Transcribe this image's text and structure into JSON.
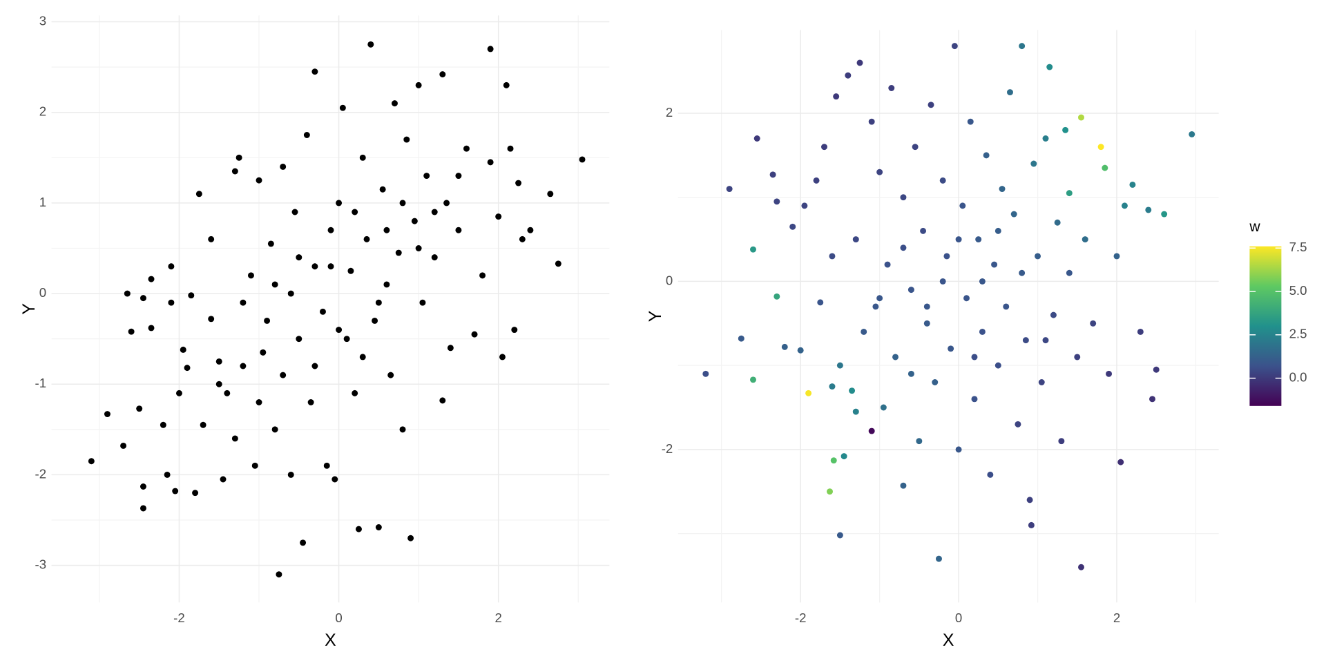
{
  "chart_data": [
    {
      "type": "scatter",
      "xlabel": "X",
      "ylabel": "Y",
      "color": "#000000",
      "grid": true,
      "xlim": [
        -3.6,
        3.39
      ],
      "ylim": [
        -3.41,
        3.07
      ],
      "xticks": [
        -2,
        0,
        2
      ],
      "yticks": [
        -3,
        -2,
        -1,
        0,
        1,
        2,
        3
      ],
      "xminor": [
        -3,
        -1,
        1,
        3
      ],
      "yminor": [
        -2.5,
        -1.5,
        -0.5,
        0.5,
        1.5,
        2.5
      ],
      "x": [
        -3.1,
        -2.9,
        -2.7,
        -2.65,
        -2.6,
        -2.5,
        -2.45,
        -2.45,
        -2.45,
        -2.35,
        -2.35,
        -2.2,
        -2.15,
        -2.1,
        -2.1,
        -2.05,
        -2.0,
        -1.95,
        -1.9,
        -1.85,
        -1.8,
        -1.75,
        -1.7,
        -1.6,
        -1.6,
        -1.5,
        -1.45,
        -1.4,
        -1.3,
        -1.3,
        -1.25,
        -1.2,
        -1.1,
        -1.05,
        -1.0,
        -0.95,
        -0.9,
        -0.85,
        -0.8,
        -0.75,
        -0.7,
        -0.7,
        -0.6,
        -0.55,
        -0.5,
        -0.45,
        -0.4,
        -0.35,
        -0.3,
        -0.3,
        -0.2,
        -0.15,
        -0.1,
        -0.05,
        0,
        0.05,
        0.1,
        0.15,
        0.2,
        0.25,
        0.3,
        0.35,
        0.4,
        0.45,
        0.5,
        0.55,
        0.6,
        0.65,
        0.7,
        0.75,
        0.8,
        0.85,
        0.9,
        0.95,
        1.0,
        1.05,
        1.1,
        1.2,
        1.3,
        1.3,
        1.35,
        1.4,
        1.5,
        1.6,
        1.7,
        1.8,
        1.9,
        1.9,
        2.0,
        2.05,
        2.1,
        2.15,
        2.2,
        2.25,
        2.3,
        2.4,
        2.65,
        2.75,
        3.05,
        -0.6,
        -0.3,
        0.2,
        -0.8,
        0.5,
        1.0,
        -1.2,
        0.0,
        0.3,
        -0.5,
        0.8,
        -1.5,
        1.5,
        -0.1,
        0.6,
        -1.0,
        1.2
      ],
      "y": [
        -1.85,
        -1.33,
        -1.68,
        0,
        -0.42,
        -1.27,
        -2.13,
        -2.37,
        -0.05,
        0.16,
        -0.38,
        -1.45,
        -2.0,
        0.3,
        -0.1,
        -2.18,
        -1.1,
        -0.62,
        -0.82,
        -0.02,
        -2.2,
        1.1,
        -1.45,
        -0.28,
        0.6,
        -0.75,
        -2.05,
        -1.1,
        -1.6,
        1.35,
        1.5,
        -0.1,
        0.2,
        -1.9,
        1.25,
        -0.65,
        -0.3,
        0.55,
        -1.5,
        -3.1,
        1.4,
        -0.9,
        -2.0,
        0.9,
        -0.5,
        -2.75,
        1.75,
        -1.2,
        2.45,
        0.3,
        -0.2,
        -1.9,
        0.7,
        -2.05,
        1.0,
        2.05,
        -0.5,
        0.25,
        -1.1,
        -2.6,
        1.5,
        0.6,
        2.75,
        -0.3,
        -2.58,
        1.15,
        0.1,
        -0.9,
        2.1,
        0.45,
        -1.5,
        1.7,
        -2.7,
        0.8,
        2.3,
        -0.1,
        1.3,
        0.4,
        2.42,
        -1.18,
        1.0,
        -0.6,
        0.7,
        1.6,
        -0.45,
        0.2,
        2.7,
        1.45,
        0.85,
        -0.7,
        2.3,
        1.6,
        -0.4,
        1.22,
        0.6,
        0.7,
        1.1,
        0.33,
        1.48,
        0.0,
        -0.8,
        0.9,
        0.1,
        -0.1,
        0.5,
        -0.8,
        -0.4,
        -0.7,
        0.4,
        1.0,
        -1.0,
        1.3,
        0.3,
        0.7,
        -1.2,
        0.9
      ]
    },
    {
      "type": "scatter",
      "xlabel": "X",
      "ylabel": "Y",
      "grid": true,
      "xlim": [
        -3.55,
        3.29
      ],
      "ylim": [
        -3.82,
        2.99
      ],
      "xticks": [
        -2,
        0,
        2
      ],
      "yticks": [
        -2,
        0,
        2
      ],
      "xminor": [
        -3,
        -1,
        1,
        3
      ],
      "yminor": [
        -3,
        -1,
        1
      ],
      "colorbar": {
        "title": "w",
        "lim": [
          -1.6,
          7.6
        ],
        "ticks": [
          {
            "value": 0,
            "label": "0.0"
          },
          {
            "value": 2.5,
            "label": "2.5"
          },
          {
            "value": 5,
            "label": "5.0"
          },
          {
            "value": 7.5,
            "label": "7.5"
          }
        ],
        "colormap": [
          "#440154",
          "#3b528b",
          "#21918c",
          "#5ec962",
          "#fde725"
        ]
      },
      "x": [
        -3.2,
        -2.9,
        -2.75,
        -2.55,
        -2.35,
        -2.3,
        -2.2,
        -2.1,
        -2.0,
        -1.95,
        -1.8,
        -1.75,
        -1.7,
        -1.6,
        -1.55,
        -1.5,
        -1.5,
        -1.4,
        -1.35,
        -1.3,
        -1.25,
        -1.2,
        -1.1,
        -1.05,
        -1.0,
        -0.95,
        -0.9,
        -0.85,
        -0.8,
        -0.7,
        -0.7,
        -0.6,
        -0.55,
        -0.5,
        -0.45,
        -0.4,
        -0.35,
        -0.3,
        -0.25,
        -0.2,
        -0.15,
        -0.1,
        -0.05,
        0.0,
        0.05,
        0.1,
        0.15,
        0.2,
        0.25,
        0.3,
        0.35,
        0.4,
        0.45,
        0.5,
        0.55,
        0.6,
        0.65,
        0.7,
        0.75,
        0.8,
        0.85,
        0.9,
        0.92,
        0.95,
        1.0,
        1.05,
        1.1,
        1.15,
        1.2,
        1.25,
        1.3,
        1.35,
        1.4,
        1.5,
        1.55,
        1.55,
        1.6,
        1.7,
        1.8,
        1.85,
        1.9,
        2.0,
        2.05,
        2.1,
        2.2,
        2.3,
        2.4,
        2.45,
        2.5,
        2.6,
        2.95,
        -1.9,
        -1.63,
        -1.58,
        -2.6,
        -2.3,
        -2.6,
        -1.1,
        1.4,
        -0.2,
        0.3,
        -0.7,
        0.8,
        -0.4,
        0.0,
        0.5,
        -1.0,
        0.2,
        -0.6,
        -1.6,
        1.1,
        -1.3,
        -1.45
      ],
      "y": [
        -1.1,
        1.1,
        -0.68,
        1.7,
        1.27,
        0.95,
        -0.78,
        0.65,
        -0.82,
        0.9,
        1.2,
        -0.25,
        1.6,
        -1.25,
        2.2,
        -1.0,
        -3.02,
        2.45,
        -1.3,
        0.5,
        2.6,
        -0.6,
        1.9,
        -0.3,
        1.3,
        -1.5,
        0.2,
        2.3,
        -0.9,
        -2.43,
        1.0,
        -0.1,
        1.6,
        -1.9,
        0.6,
        -0.5,
        2.1,
        -1.2,
        -3.3,
        1.2,
        0.3,
        -0.8,
        2.8,
        -2.0,
        0.9,
        -0.2,
        1.9,
        -1.4,
        0.5,
        -0.6,
        1.5,
        -2.3,
        0.2,
        -1.0,
        1.1,
        -0.3,
        2.25,
        0.8,
        -1.7,
        2.8,
        -0.7,
        -2.6,
        -2.9,
        1.4,
        0.3,
        -1.2,
        1.7,
        2.55,
        -0.4,
        0.7,
        -1.9,
        1.8,
        0.1,
        -0.9,
        1.95,
        -3.4,
        0.5,
        -0.5,
        1.6,
        1.35,
        -1.1,
        0.3,
        -2.15,
        0.9,
        1.15,
        -0.6,
        0.85,
        -1.4,
        -1.05,
        0.8,
        1.75,
        -1.33,
        -2.5,
        -2.13,
        0.38,
        -0.18,
        -1.17,
        -1.78,
        1.05,
        0.0,
        0.0,
        0.4,
        0.1,
        -0.3,
        0.5,
        0.6,
        -0.2,
        -0.9,
        -1.1,
        0.3,
        -0.7,
        -1.55,
        -2.08
      ],
      "w": [
        0.6,
        0.3,
        1.0,
        0.0,
        0.2,
        0.3,
        1.2,
        0.4,
        1.3,
        0.3,
        0.2,
        0.8,
        0.1,
        2.2,
        0.0,
        2.0,
        1.0,
        0.1,
        2.8,
        0.4,
        0.0,
        1.0,
        0.2,
        0.9,
        0.3,
        1.8,
        0.7,
        0.1,
        1.3,
        1.3,
        0.4,
        0.8,
        0.3,
        1.5,
        0.5,
        1.0,
        0.2,
        1.2,
        1.4,
        0.5,
        0.7,
        0.9,
        0.3,
        0.9,
        0.8,
        0.8,
        0.9,
        0.7,
        1.0,
        0.7,
        1.2,
        0.6,
        0.9,
        0.6,
        1.4,
        0.8,
        1.7,
        1.4,
        0.3,
        2.0,
        0.5,
        0.2,
        0.1,
        2.0,
        1.1,
        0.3,
        2.3,
        2.8,
        0.5,
        1.6,
        0.1,
        3.0,
        0.9,
        0.2,
        6.5,
        -0.2,
        1.7,
        0.3,
        7.6,
        4.8,
        0.0,
        1.3,
        -0.3,
        2.4,
        2.5,
        0.1,
        2.2,
        -0.2,
        0.0,
        3.2,
        2.1,
        7.5,
        5.8,
        5.0,
        3.3,
        3.8,
        4.2,
        -1.4,
        3.5,
        0.8,
        0.9,
        0.6,
        1.0,
        0.9,
        0.8,
        1.1,
        0.9,
        0.6,
        1.3,
        0.5,
        0.4,
        2.4,
        2.7
      ]
    }
  ]
}
